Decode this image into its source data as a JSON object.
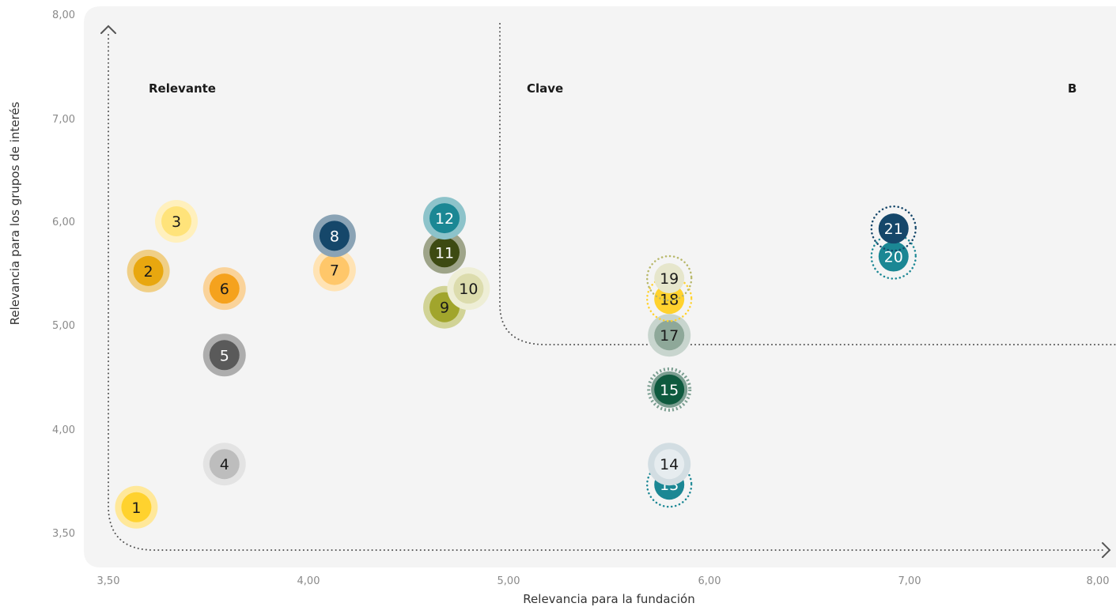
{
  "chart_data": {
    "type": "scatter",
    "xlabel": "Relevancia para la fundación",
    "ylabel": "Relevancia para los grupos de interés",
    "x_ticks": [
      "3,50",
      "4,00",
      "5,00",
      "6,00",
      "7,00",
      "8,00"
    ],
    "y_ticks": [
      "8,00",
      "7,00",
      "6,00",
      "5,00",
      "4,00",
      "3,50"
    ],
    "quadrant_labels": {
      "relevante": "Relevante",
      "clave": "Clave",
      "b": "B"
    },
    "points": [
      {
        "label": "1",
        "x": 3.57,
        "y": 3.62,
        "color": "#ffd22e",
        "halo": "#ffe89a",
        "style": "halo"
      },
      {
        "label": "2",
        "x": 3.6,
        "y": 5.52,
        "color": "#e8a70f",
        "halo": "#f0cf86",
        "style": "halo"
      },
      {
        "label": "3",
        "x": 3.67,
        "y": 6.0,
        "color": "#ffe37a",
        "halo": "#fff0bd",
        "style": "halo"
      },
      {
        "label": "4",
        "x": 3.79,
        "y": 3.83,
        "color": "#bdbdbd",
        "halo": "#e3e3e3",
        "style": "halo"
      },
      {
        "label": "5",
        "x": 3.79,
        "y": 4.71,
        "color": "#5a5a5a",
        "halo": "#adadad",
        "style": "halo"
      },
      {
        "label": "6",
        "x": 3.79,
        "y": 5.35,
        "color": "#f5a21d",
        "halo": "#fad39a",
        "style": "halo"
      },
      {
        "label": "7",
        "x": 4.13,
        "y": 5.53,
        "color": "#ffc76a",
        "halo": "#ffe3b4",
        "style": "halo"
      },
      {
        "label": "8",
        "x": 4.13,
        "y": 5.86,
        "color": "#15476a",
        "halo": "#8aa3b5",
        "style": "halo"
      },
      {
        "label": "9",
        "x": 4.68,
        "y": 5.17,
        "color": "#a1a52c",
        "halo": "#d1d396",
        "style": "halo"
      },
      {
        "label": "10",
        "x": 4.8,
        "y": 5.35,
        "color": "#dcdcad",
        "halo": "#eeeed6",
        "style": "halo"
      },
      {
        "label": "11",
        "x": 4.68,
        "y": 5.7,
        "color": "#3d4a12",
        "halo": "#9ea489",
        "style": "halo"
      },
      {
        "label": "12",
        "x": 4.68,
        "y": 6.03,
        "color": "#1b8794",
        "halo": "#8dc3ca",
        "style": "halo"
      },
      {
        "label": "13",
        "x": 5.8,
        "y": 3.73,
        "color": "#1b8794",
        "halo": "#1b8794",
        "style": "dotted"
      },
      {
        "label": "14",
        "x": 5.8,
        "y": 3.83,
        "color": "#e6ecef",
        "halo": "#d2dde2",
        "style": "halo"
      },
      {
        "label": "15",
        "x": 5.8,
        "y": 4.38,
        "color": "#0e5a3e",
        "halo": "#7a9e90",
        "style": "gear"
      },
      {
        "label": "17",
        "x": 5.8,
        "y": 4.9,
        "color": "#8ea899",
        "halo": "#c8d5ce",
        "style": "halo"
      },
      {
        "label": "18",
        "x": 5.8,
        "y": 5.25,
        "color": "#ffd22e",
        "halo": "#ffd22e",
        "style": "dotted"
      },
      {
        "label": "19",
        "x": 5.8,
        "y": 5.45,
        "color": "#e6e6cc",
        "halo": "#b8b86a",
        "style": "dotted"
      },
      {
        "label": "20",
        "x": 6.92,
        "y": 5.66,
        "color": "#1b8794",
        "halo": "#1b8794",
        "style": "dotted"
      },
      {
        "label": "21",
        "x": 6.92,
        "y": 5.93,
        "color": "#15476a",
        "halo": "#15476a",
        "style": "dotted"
      }
    ],
    "colors": {
      "plot_background": "#f4f4f4",
      "dotted_line": "#555555",
      "dark_text": "#1a1a1a",
      "light_text": "#ffffff"
    }
  }
}
